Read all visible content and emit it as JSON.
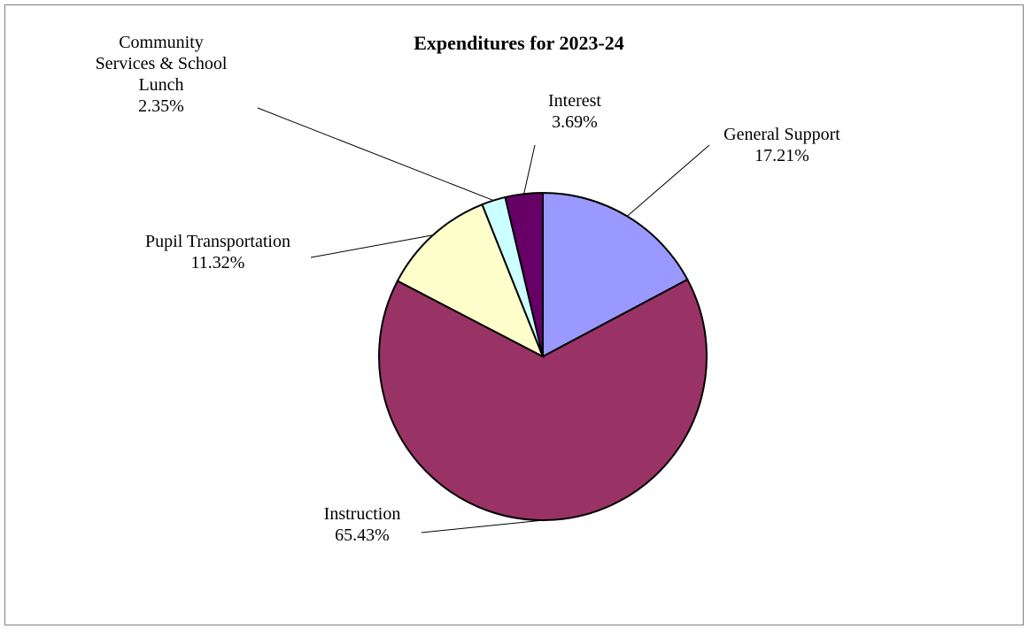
{
  "chart_data": {
    "type": "pie",
    "title": "Expenditures for 2023-24",
    "slices": [
      {
        "label": "General Support",
        "label_lines": [
          "General Support"
        ],
        "value": 17.21,
        "value_text": "17.21%",
        "color": "#9999FF"
      },
      {
        "label": "Instruction",
        "label_lines": [
          "Instruction"
        ],
        "value": 65.43,
        "value_text": "65.43%",
        "color": "#993366"
      },
      {
        "label": "Pupil Transportation",
        "label_lines": [
          "Pupil Transportation"
        ],
        "value": 11.32,
        "value_text": "11.32%",
        "color": "#FFFFCC"
      },
      {
        "label": "Community Services & School Lunch",
        "label_lines": [
          "Community",
          "Services & School",
          "Lunch"
        ],
        "value": 2.35,
        "value_text": "2.35%",
        "color": "#CCFFFF"
      },
      {
        "label": "Interest",
        "label_lines": [
          "Interest"
        ],
        "value": 3.69,
        "value_text": "3.69%",
        "color": "#660066"
      }
    ],
    "start_angle": "12 o'clock",
    "direction": "clockwise",
    "legend": "none"
  }
}
